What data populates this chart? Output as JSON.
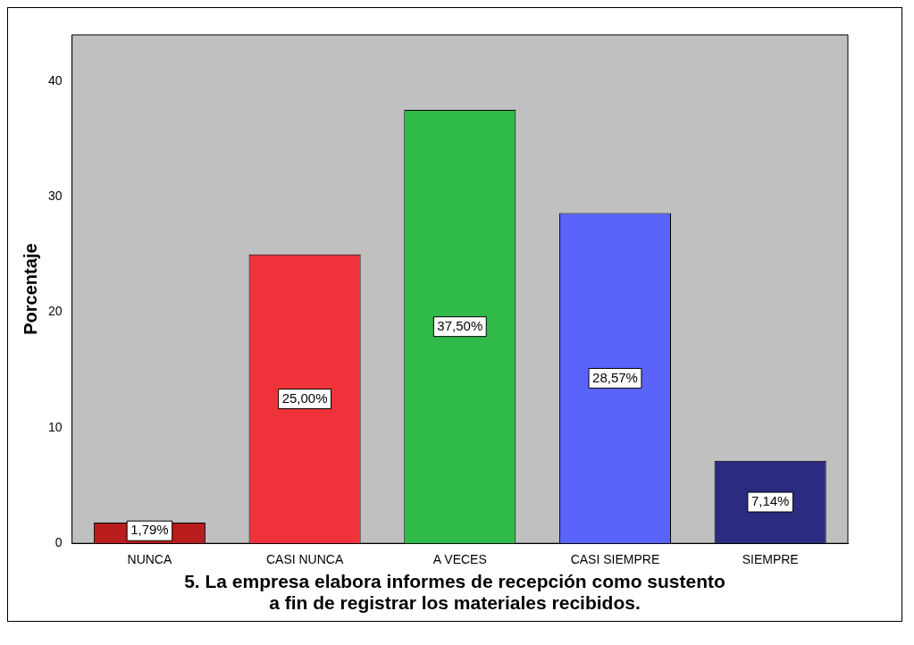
{
  "chart_data": {
    "type": "bar",
    "xlabel": "5. La empresa elabora informes de recepción como sustento a fin de registrar los materiales recibidos.",
    "ylabel": "Porcentaje",
    "categories": [
      "NUNCA",
      "CASI NUNCA",
      "A VECES",
      "CASI SIEMPRE",
      "SIEMPRE"
    ],
    "values": [
      1.79,
      25.0,
      37.5,
      28.57,
      7.14
    ],
    "value_labels": [
      "1,79%",
      "25,00%",
      "37,50%",
      "28,57%",
      "7,14%"
    ],
    "colors": [
      "#b81c1c",
      "#f0333a",
      "#2fba4a",
      "#5a64fa",
      "#2b2b80"
    ],
    "ylim": [
      0,
      44
    ],
    "yticks": [
      0,
      10,
      20,
      30,
      40
    ],
    "grid": false,
    "legend": false
  }
}
